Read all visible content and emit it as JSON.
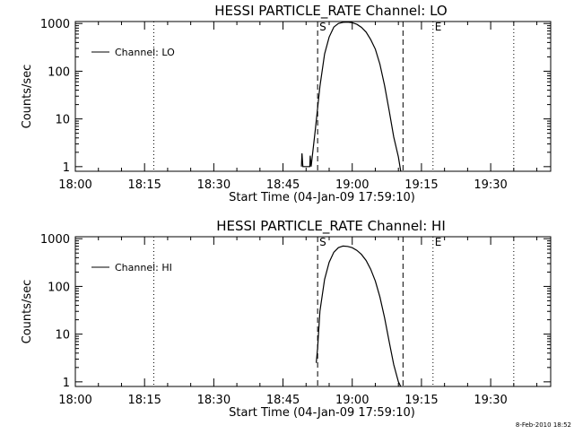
{
  "chart_data": [
    {
      "type": "line",
      "title": "HESSI PARTICLE_RATE Channel: LO",
      "xlabel": "Start Time (04-Jan-09 17:59:10)",
      "ylabel": "Counts/sec",
      "yscale": "log",
      "xlim": [
        "18:00",
        "19:43"
      ],
      "ylim": [
        0.8,
        1100
      ],
      "x_ticks": [
        "18:00",
        "18:15",
        "18:30",
        "18:45",
        "19:00",
        "19:15",
        "19:30"
      ],
      "y_ticks": [
        "1",
        "10",
        "100",
        "1000"
      ],
      "legend": {
        "label": "Channel: LO",
        "position": "top-left"
      },
      "markers": [
        {
          "label": "S",
          "time": "18:52.5",
          "style": "dashed"
        },
        {
          "label": "",
          "time": "19:11",
          "style": "dashed"
        },
        {
          "label": "",
          "time": "18:17",
          "style": "dotted"
        },
        {
          "label": "E",
          "time": "19:17.5",
          "style": "dotted"
        },
        {
          "label": "",
          "time": "19:35",
          "style": "dotted"
        }
      ],
      "series": [
        {
          "name": "Channel: LO",
          "x": [
            "18:49.0",
            "18:49.1",
            "18:49.3",
            "18:50.8",
            "18:50.9",
            "18:51.1",
            "18:52",
            "18:53",
            "18:54",
            "18:55",
            "18:56",
            "18:57",
            "18:58",
            "18:59",
            "19:00",
            "19:01",
            "19:02",
            "19:03",
            "19:04",
            "19:05",
            "19:06",
            "19:07",
            "19:08",
            "19:09",
            "19:10",
            "19:10.5"
          ],
          "y": [
            1.0,
            1.9,
            1.0,
            1.0,
            1.7,
            1.0,
            6,
            48,
            230,
            520,
            840,
            1000,
            1060,
            1070,
            1040,
            960,
            830,
            660,
            460,
            290,
            140,
            50,
            15,
            4.2,
            1.6,
            0.8
          ]
        }
      ]
    },
    {
      "type": "line",
      "title": "HESSI PARTICLE_RATE Channel: HI",
      "xlabel": "Start Time (04-Jan-09 17:59:10)",
      "ylabel": "Counts/sec",
      "yscale": "log",
      "xlim": [
        "18:00",
        "19:43"
      ],
      "ylim": [
        0.8,
        1100
      ],
      "x_ticks": [
        "18:00",
        "18:15",
        "18:30",
        "18:45",
        "19:00",
        "19:15",
        "19:30"
      ],
      "y_ticks": [
        "1",
        "10",
        "100",
        "1000"
      ],
      "legend": {
        "label": "Channel: HI",
        "position": "top-left"
      },
      "markers": [
        {
          "label": "S",
          "time": "18:52.5",
          "style": "dashed"
        },
        {
          "label": "",
          "time": "19:11",
          "style": "dashed"
        },
        {
          "label": "",
          "time": "18:17",
          "style": "dotted"
        },
        {
          "label": "E",
          "time": "19:17.5",
          "style": "dotted"
        },
        {
          "label": "",
          "time": "19:35",
          "style": "dotted"
        }
      ],
      "series": [
        {
          "name": "Channel: HI",
          "x": [
            "18:52.2",
            "18:52.5",
            "18:53",
            "18:54",
            "18:55",
            "18:56",
            "18:57",
            "18:58",
            "18:59",
            "19:00",
            "19:01",
            "19:02",
            "19:03",
            "19:04",
            "19:05",
            "19:06",
            "19:07",
            "19:08",
            "19:09",
            "19:10",
            "19:10.5"
          ],
          "y": [
            2.5,
            5,
            30,
            140,
            320,
            520,
            650,
            700,
            690,
            650,
            570,
            470,
            350,
            230,
            130,
            60,
            22,
            7,
            2.3,
            1.0,
            0.8
          ]
        }
      ]
    }
  ],
  "footer": {
    "timestamp": "8-Feb-2010 18:52"
  }
}
